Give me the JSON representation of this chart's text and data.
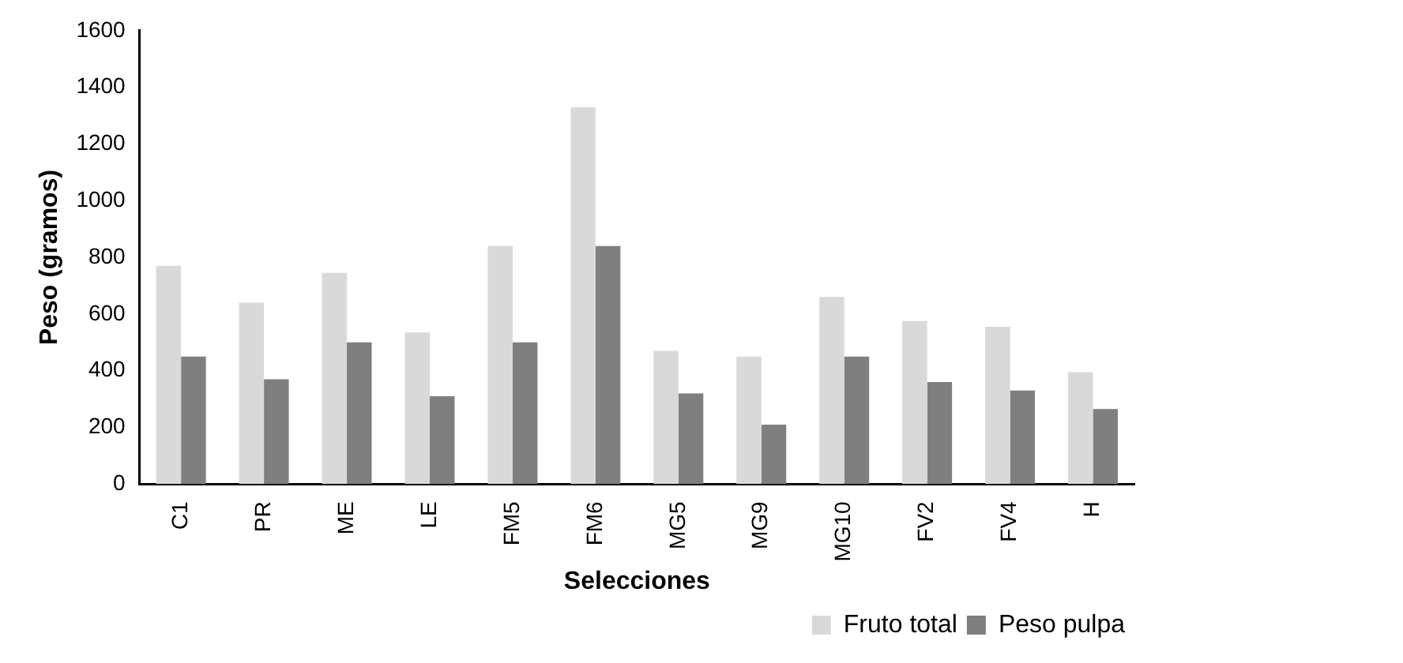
{
  "chart_data": {
    "type": "bar",
    "xlabel": "Selecciones",
    "ylabel": "Peso (gramos)",
    "categories": [
      "C1",
      "PR",
      "ME",
      "LE",
      "FM5",
      "FM6",
      "MG5",
      "MG9",
      "MG10",
      "FV2",
      "FV4",
      "H"
    ],
    "series": [
      {
        "name": "Fruto total",
        "color": "#d9d9d9",
        "values": [
          770,
          640,
          745,
          535,
          840,
          1330,
          470,
          450,
          660,
          575,
          555,
          395
        ]
      },
      {
        "name": "Peso pulpa",
        "color": "#7f7f7f",
        "values": [
          450,
          370,
          500,
          310,
          500,
          840,
          320,
          210,
          450,
          360,
          330,
          265
        ]
      }
    ],
    "ylim": [
      0,
      1600
    ],
    "yticks": [
      0,
      200,
      400,
      600,
      800,
      1000,
      1200,
      1400,
      1600
    ],
    "grid": false,
    "legend": "bottom right"
  }
}
